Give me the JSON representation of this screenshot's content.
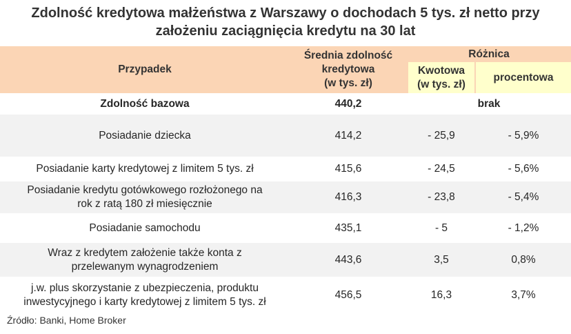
{
  "title_line1": "Zdolność kredytowa małżeństwa z Warszawy o dochodach 5 tys. zł netto przy",
  "title_line2": "założeniu zaciągnięcia kredytu na 30 lat",
  "chart_data": {
    "type": "table",
    "headers": {
      "case": "Przypadek",
      "avg_capacity": [
        "Średnia zdolność",
        "kredytowa",
        "(w tys. zł)"
      ],
      "difference": "Różnica",
      "amount": [
        "Kwotowa",
        "(w tys. zł)"
      ],
      "percent": "procentowa"
    },
    "rows": [
      {
        "case": [
          "Zdolność bazowa"
        ],
        "capacity": "440,2",
        "amount": "brak",
        "percent": "",
        "bold": true
      },
      {
        "case": [
          "Posiadanie dziecka"
        ],
        "capacity": "414,2",
        "amount": "- 25,9",
        "percent": "- 5,9%"
      },
      {
        "case": [
          "Posiadanie karty kredytowej z limitem 5 tys. zł"
        ],
        "capacity": "415,6",
        "amount": "- 24,5",
        "percent": "- 5,6%"
      },
      {
        "case": [
          "Posiadanie kredytu gotówkowego rozłożonego na",
          "rok z ratą 180 zł miesięcznie"
        ],
        "capacity": "416,3",
        "amount": "- 23,8",
        "percent": "- 5,4%"
      },
      {
        "case": [
          "Posiadanie samochodu"
        ],
        "capacity": "435,1",
        "amount": "- 5",
        "percent": "- 1,2%"
      },
      {
        "case": [
          "Wraz z kredytem założenie także konta z",
          "przelewanym wynagrodzeniem"
        ],
        "capacity": "443,6",
        "amount": "3,5",
        "percent": "0,8%"
      },
      {
        "case": [
          "j.w. plus skorzystanie z ubezpieczenia, produktu",
          "inwestycyjnego i karty kredytowej z limitem 5 tys. zł"
        ],
        "capacity": "456,5",
        "amount": "16,3",
        "percent": "3,7%"
      }
    ]
  },
  "source": "Źródło: Banki, Home Broker"
}
